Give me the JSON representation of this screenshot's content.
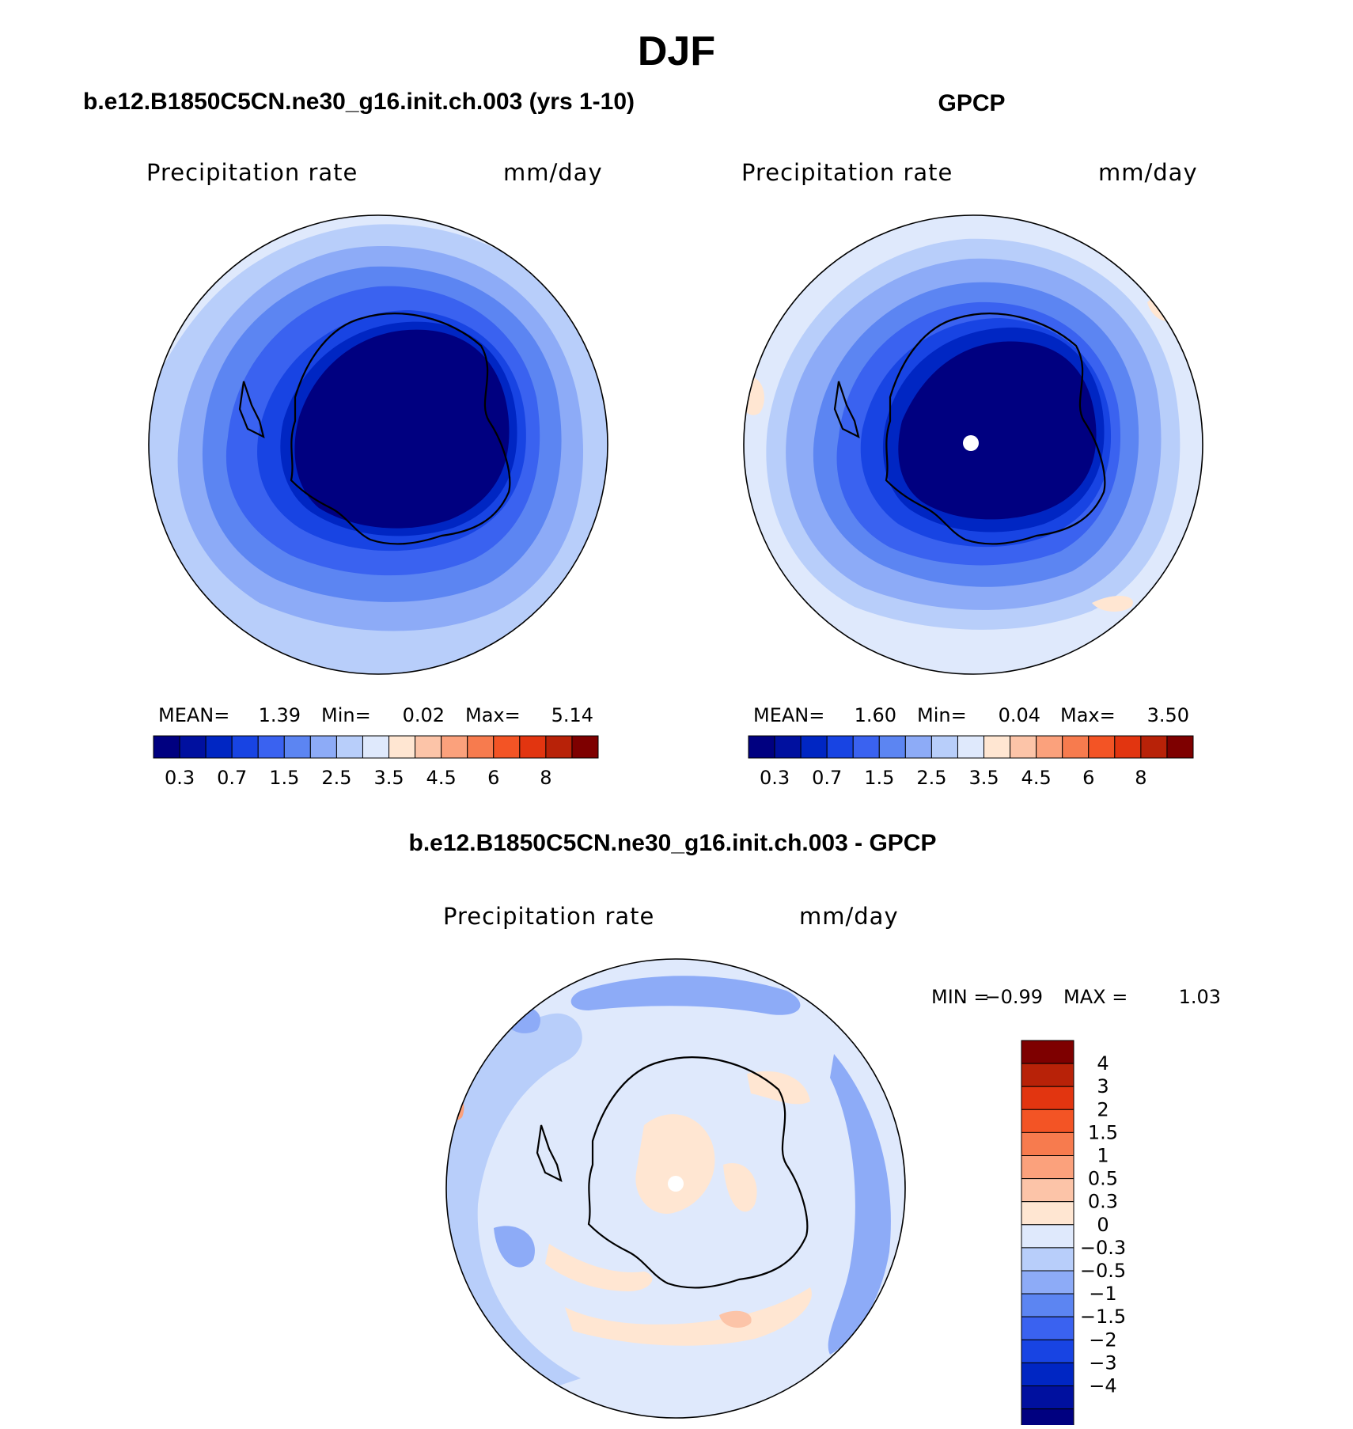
{
  "page": {
    "title": "DJF"
  },
  "colors": {
    "abs": [
      "#000080",
      "#00109f",
      "#0026c3",
      "#1844e3",
      "#3a62f0",
      "#5c85f2",
      "#8dabf7",
      "#b8cefa",
      "#dfe9fc",
      "#ffe6d2",
      "#fcc4a8",
      "#fba17c",
      "#f77b4e",
      "#f35425",
      "#e23510",
      "#b82208",
      "#7e0000"
    ],
    "diff": [
      "#000080",
      "#00109f",
      "#0026c3",
      "#1844e3",
      "#3a62f0",
      "#5c85f2",
      "#8dabf7",
      "#b8cefa",
      "#dfe9fc",
      "#ffe6d2",
      "#fcc4a8",
      "#fba17c",
      "#f77b4e",
      "#f35425",
      "#e23510",
      "#b82208",
      "#7e0000"
    ],
    "coast": "#000000"
  },
  "chart_data": [
    {
      "type": "heatmap",
      "projection": "south-polar-stereographic",
      "title": "b.e12.B1850C5CN.ne30_g16.init.ch.003 (yrs 1-10)",
      "left_label": "Precipitation  rate",
      "right_label": "mm/day",
      "stats": {
        "mean_label": "MEAN=",
        "mean": "1.39",
        "min_label": "Min=",
        "min": "0.02",
        "max_label": "Max=",
        "max": "5.14"
      },
      "levels": [
        0.2,
        0.3,
        0.5,
        0.7,
        1,
        1.5,
        2,
        2.5,
        3,
        3.5,
        4,
        4.5,
        5,
        6,
        7,
        8
      ],
      "tick_labels": [
        "0.3",
        "0.7",
        "1.5",
        "2.5",
        "3.5",
        "4.5",
        "6",
        "8"
      ]
    },
    {
      "type": "heatmap",
      "projection": "south-polar-stereographic",
      "title": "GPCP",
      "left_label": "Precipitation  rate",
      "right_label": "mm/day",
      "stats": {
        "mean_label": "MEAN=",
        "mean": "1.60",
        "min_label": "Min=",
        "min": "0.04",
        "max_label": "Max=",
        "max": "3.50"
      },
      "levels": [
        0.2,
        0.3,
        0.5,
        0.7,
        1,
        1.5,
        2,
        2.5,
        3,
        3.5,
        4,
        4.5,
        5,
        6,
        7,
        8
      ],
      "tick_labels": [
        "0.3",
        "0.7",
        "1.5",
        "2.5",
        "3.5",
        "4.5",
        "6",
        "8"
      ]
    },
    {
      "type": "heatmap",
      "projection": "south-polar-stereographic",
      "title": "b.e12.B1850C5CN.ne30_g16.init.ch.003 - GPCP",
      "left_label": "Precipitation  rate",
      "right_label": "mm/day",
      "range_text": {
        "min_label": "MIN =",
        "min": "−0.99",
        "max_label": "MAX =",
        "max": "1.03"
      },
      "levels": [
        -5,
        -4,
        -3,
        -2,
        -1.5,
        -1,
        -0.5,
        -0.3,
        0,
        0.3,
        0.5,
        1,
        1.5,
        2,
        3,
        4
      ],
      "tick_labels": [
        "4",
        "3",
        "2",
        "1.5",
        "1",
        "0.5",
        "0.3",
        "0",
        "−0.3",
        "−0.5",
        "−1",
        "−1.5",
        "−2",
        "−3",
        "−4"
      ]
    }
  ]
}
